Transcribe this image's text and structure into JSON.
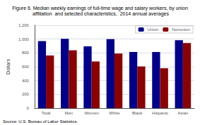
{
  "chart_data": {
    "type": "bar",
    "title": "Figure 6. Median weekly earnings of full-time wage and salary workers, by union\n affiliation  and selected characteristics,  2014 annual averages",
    "categories": [
      "Total",
      "Men",
      "Women",
      "White",
      "Black",
      "Hispanic",
      "Asian"
    ],
    "series": [
      {
        "name": "Union",
        "color": "#00008B",
        "values": [
          970,
          1004,
          894,
          998,
          813,
          813,
          983
        ]
      },
      {
        "name": "Nonunion",
        "color": "#8B0000",
        "values": [
          763,
          838,
          676,
          791,
          604,
          578,
          942
        ]
      }
    ],
    "ylabel": "Dollars",
    "ylim": [
      0,
      1200
    ],
    "yticks": [
      0,
      200,
      400,
      600,
      800,
      1000,
      1200
    ],
    "grid": true,
    "legend": "upper right",
    "annotations": [
      "Source: U.S. Bureau of Labor Statistics."
    ]
  }
}
